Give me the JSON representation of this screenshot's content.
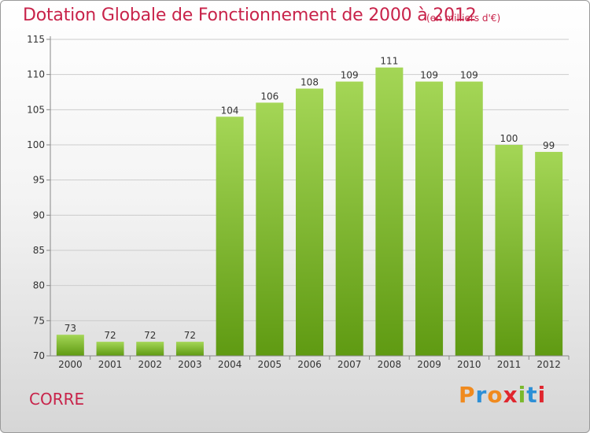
{
  "header": {
    "title": "Dotation Globale de Fonctionnement de 2000 à 2012",
    "unit": "(en milliers d'€)"
  },
  "footer": {
    "commune": "CORRE",
    "brand": "Proxiti",
    "brand_colors": [
      "#f08a1e",
      "#2d8fd6",
      "#f08a1e",
      "#e0262e",
      "#7ab82c",
      "#2d8fd6",
      "#e0262e"
    ]
  },
  "colors": {
    "title": "#c8234a",
    "bar_top": "#a4d656",
    "bar_bottom": "#5f9a12",
    "grid": "#cccccc"
  },
  "chart_data": {
    "type": "bar",
    "categories": [
      "2000",
      "2001",
      "2002",
      "2003",
      "2004",
      "2005",
      "2006",
      "2007",
      "2008",
      "2009",
      "2010",
      "2011",
      "2012"
    ],
    "values": [
      73,
      72,
      72,
      72,
      104,
      106,
      108,
      109,
      111,
      109,
      109,
      100,
      99
    ],
    "ylim": [
      70,
      115
    ],
    "yticks": [
      70,
      75,
      80,
      85,
      90,
      95,
      100,
      105,
      110,
      115
    ],
    "grid": true,
    "title": "Dotation Globale de Fonctionnement de 2000 à 2012",
    "ylabel": "(en milliers d'€)",
    "xlabel": ""
  }
}
